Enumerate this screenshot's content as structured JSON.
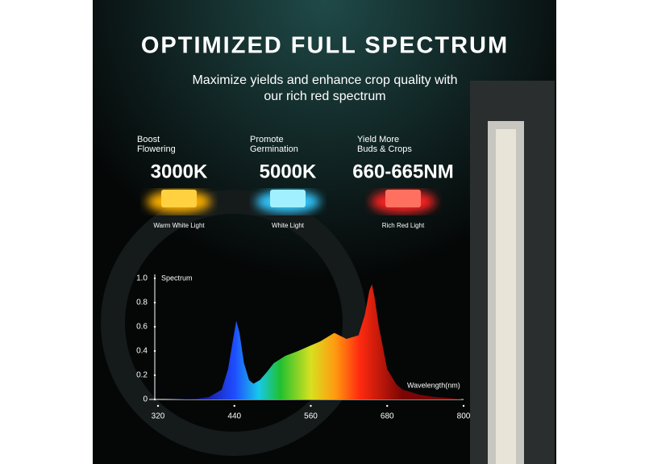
{
  "header": {
    "title": "OPTIMIZED FULL SPECTRUM",
    "subtitle": [
      "Maximize yields and enhance crop quality with",
      "our rich red spectrum"
    ]
  },
  "features": [
    {
      "label": [
        "Boost",
        "Flowering"
      ],
      "value": "3000K",
      "caption": "Warm White Light"
    },
    {
      "label": [
        "Promote",
        "Germination"
      ],
      "value": "5000K",
      "caption": "White Light"
    },
    {
      "label": [
        "Yield More",
        "Buds & Crops"
      ],
      "value": "660-665NM",
      "caption": "Rich Red Light"
    }
  ],
  "chart_data": {
    "type": "area",
    "y_label": "Spectrum",
    "x_label": "Wavelength(nm)",
    "x": [
      330,
      380,
      400,
      420,
      430,
      438,
      443,
      448,
      455,
      463,
      470,
      480,
      490,
      502,
      520,
      540,
      553,
      575,
      597,
      616,
      635,
      645,
      652,
      656,
      660,
      667,
      680,
      695,
      705,
      730,
      755,
      780,
      800
    ],
    "values": [
      0,
      0.005,
      0.02,
      0.08,
      0.25,
      0.5,
      0.65,
      0.55,
      0.3,
      0.16,
      0.13,
      0.16,
      0.22,
      0.3,
      0.36,
      0.4,
      0.43,
      0.48,
      0.55,
      0.5,
      0.53,
      0.7,
      0.9,
      0.95,
      0.85,
      0.6,
      0.25,
      0.12,
      0.08,
      0.04,
      0.02,
      0.01,
      0
    ],
    "xlim": [
      320,
      800
    ],
    "xticks": [
      320,
      440,
      560,
      680,
      800
    ],
    "ylim": [
      0,
      1
    ],
    "yticks": [
      0,
      0.2,
      0.4,
      0.6,
      0.8,
      {
        "value": 1,
        "label": "1.0"
      }
    ]
  }
}
